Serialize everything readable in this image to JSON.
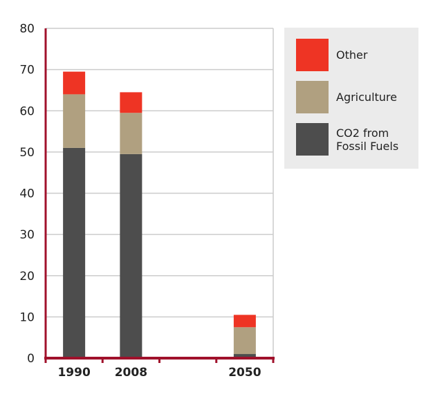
{
  "chart_data": {
    "type": "bar",
    "stacked": true,
    "categories": [
      "1990",
      "2008",
      "",
      "2050"
    ],
    "series": [
      {
        "name": "CO2 from\nFossil Fuels",
        "color": "#4d4d4d",
        "values": [
          51,
          49.5,
          null,
          1
        ]
      },
      {
        "name": "Agriculture",
        "color": "#b0a080",
        "values": [
          13,
          10,
          null,
          6.5
        ]
      },
      {
        "name": "Other",
        "color": "#ee3424",
        "values": [
          5.5,
          5,
          null,
          3
        ]
      }
    ],
    "yticks": [
      0,
      10,
      20,
      30,
      40,
      50,
      60,
      70,
      80
    ],
    "ylim": [
      0,
      80
    ],
    "grid": true,
    "legend_position": "top-right",
    "axis_color": "#a0112b",
    "grid_color": "#cccccc"
  },
  "legend": {
    "items": [
      {
        "label": "Other",
        "color": "#ee3424"
      },
      {
        "label": "Agriculture",
        "color": "#b0a080"
      },
      {
        "label": "CO2 from\nFossil Fuels",
        "color": "#4d4d4d"
      }
    ]
  }
}
